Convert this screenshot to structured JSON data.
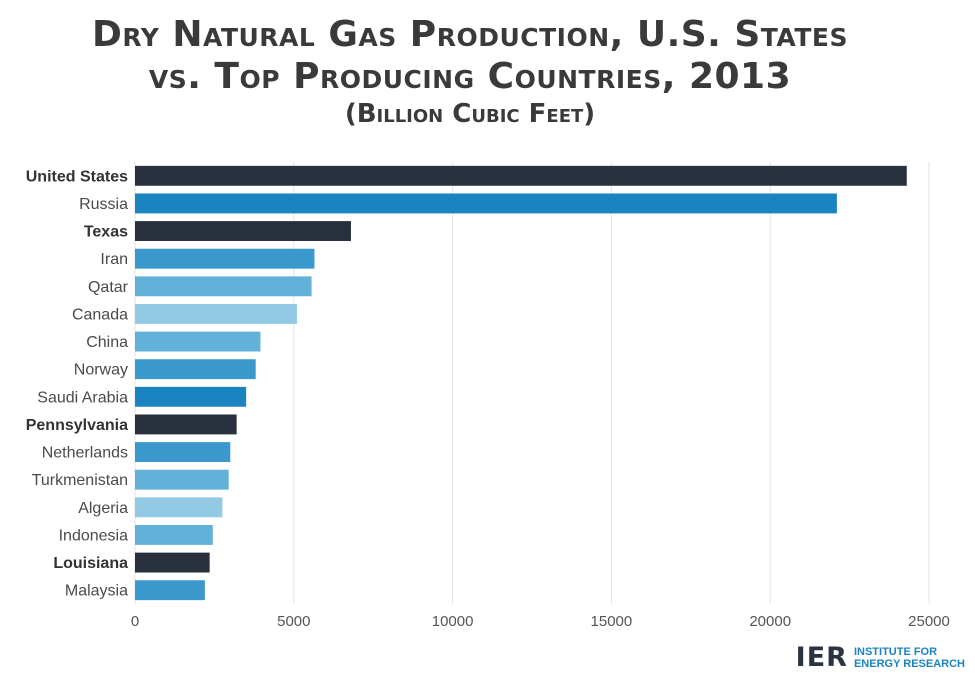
{
  "title_line1": "Dry Natural Gas Production, U.S. States",
  "title_line2": "vs. Top Producing Countries, 2013",
  "subtitle": "(Billion Cubic Feet)",
  "logo": {
    "mark": "IER",
    "line1": "INSTITUTE FOR",
    "line2": "ENERGY RESEARCH"
  },
  "chart_data": {
    "type": "bar",
    "orientation": "horizontal",
    "title": "Dry Natural Gas Production, U.S. States vs. Top Producing Countries, 2013",
    "subtitle": "(Billion Cubic Feet)",
    "xlabel": "",
    "ylabel": "",
    "xlim": [
      0,
      25000
    ],
    "xticks": [
      0,
      5000,
      10000,
      15000,
      20000,
      25000
    ],
    "grid": true,
    "categories": [
      "United States",
      "Russia",
      "Texas",
      "Iran",
      "Qatar",
      "Canada",
      "China",
      "Norway",
      "Saudi Arabia",
      "Pennsylvania",
      "Netherlands",
      "Turkmenistan",
      "Algeria",
      "Indonesia",
      "Louisiana",
      "Malaysia"
    ],
    "values": [
      24300,
      22100,
      6800,
      5650,
      5560,
      5100,
      3950,
      3800,
      3500,
      3200,
      3000,
      2950,
      2750,
      2450,
      2350,
      2200
    ],
    "bold": [
      true,
      false,
      true,
      false,
      false,
      false,
      false,
      false,
      false,
      true,
      false,
      false,
      false,
      false,
      true,
      false
    ],
    "colors": [
      "#27303c",
      "#1a84c0",
      "#27303c",
      "#3a98cc",
      "#62b1d8",
      "#92cae6",
      "#62b1d8",
      "#3a98cc",
      "#1a84c0",
      "#27303c",
      "#3a98cc",
      "#62b1d8",
      "#92cae6",
      "#62b1d8",
      "#27303c",
      "#3a98cc"
    ]
  }
}
